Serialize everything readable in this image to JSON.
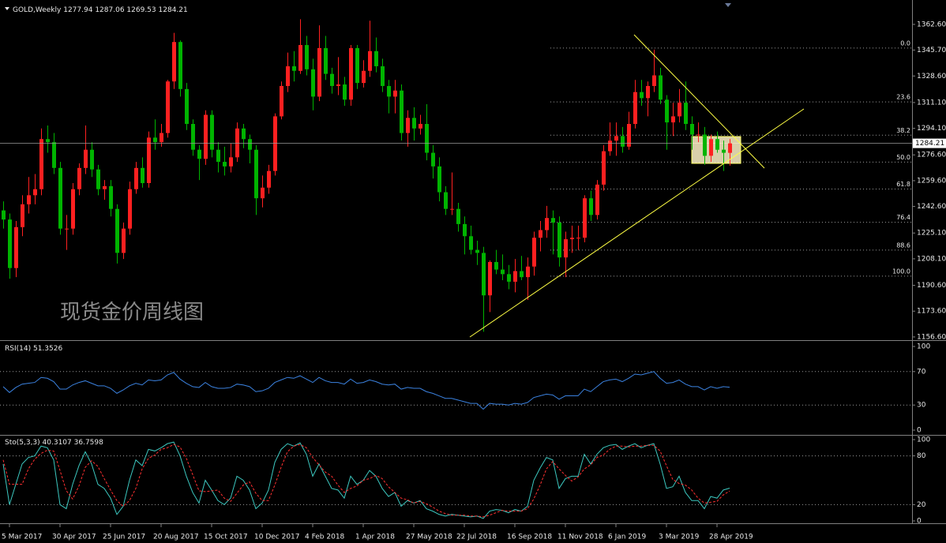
{
  "chart_data": {
    "type": "candlestick",
    "symbol": "GOLD,Weekly",
    "header_ohlc": [
      1277.94,
      1287.06,
      1269.53,
      1284.21
    ],
    "watermark": "现货金价周线图",
    "bull_color": "#ff2020",
    "bear_color": "#00b400",
    "ylim": [
      1155,
      1376.6
    ],
    "yticks": [
      {
        "value": 1362.6,
        "label": "1362.60"
      },
      {
        "value": 1345.7,
        "label": "1345.70"
      },
      {
        "value": 1328.6,
        "label": "1328.60"
      },
      {
        "value": 1311.1,
        "label": "1311.10"
      },
      {
        "value": 1294.1,
        "label": "1294.10"
      },
      {
        "value": 1276.6,
        "label": "1276.60"
      },
      {
        "value": 1259.6,
        "label": "1259.60"
      },
      {
        "value": 1242.6,
        "label": "1242.60"
      },
      {
        "value": 1225.1,
        "label": "1225.10"
      },
      {
        "value": 1208.1,
        "label": "1208.10"
      },
      {
        "value": 1190.6,
        "label": "1190.60"
      },
      {
        "value": 1173.6,
        "label": "1173.60"
      },
      {
        "value": 1156.6,
        "label": "1156.60"
      }
    ],
    "categories": [
      null,
      "5 Mar 2017",
      null,
      null,
      null,
      null,
      null,
      null,
      null,
      "30 Apr 2017",
      null,
      null,
      null,
      null,
      null,
      null,
      null,
      "25 Jun 2017",
      null,
      null,
      null,
      null,
      null,
      null,
      null,
      "20 Aug 2017",
      null,
      null,
      null,
      null,
      null,
      null,
      null,
      "15 Oct 2017",
      null,
      null,
      null,
      null,
      null,
      null,
      null,
      "10 Dec 2017",
      null,
      null,
      null,
      null,
      null,
      null,
      null,
      "4 Feb 2018",
      null,
      null,
      null,
      null,
      null,
      null,
      null,
      "1 Apr 2018",
      null,
      null,
      null,
      null,
      null,
      null,
      null,
      "27 May 2018",
      null,
      null,
      null,
      null,
      null,
      null,
      null,
      "22 Jul 2018",
      null,
      null,
      null,
      null,
      null,
      null,
      null,
      "16 Sep 2018",
      null,
      null,
      null,
      null,
      null,
      null,
      null,
      "11 Nov 2018",
      null,
      null,
      null,
      null,
      null,
      null,
      null,
      "6 Jan 2019",
      null,
      null,
      null,
      null,
      null,
      null,
      null,
      "3 Mar 2019",
      null,
      null,
      null,
      null,
      null,
      null,
      null,
      "28 Apr 2019",
      null,
      null
    ],
    "open": [
      1240,
      1234,
      1202,
      1229,
      1244,
      1250,
      1254,
      1287,
      1285,
      1268,
      1228,
      1228,
      1254,
      1268,
      1280,
      1267,
      1254,
      1256,
      1241,
      1212,
      1228,
      1254,
      1268,
      1258,
      1288,
      1285,
      1291,
      1325,
      1351,
      1320,
      1297,
      1280,
      1274,
      1303,
      1280,
      1272,
      1269,
      1275,
      1294,
      1287,
      1280,
      1248,
      1255,
      1266,
      1302,
      1322,
      1335,
      1332,
      1349,
      1333,
      1315,
      1347,
      1330,
      1322,
      1323,
      1313,
      1347,
      1324,
      1332,
      1345,
      1335,
      1322,
      1315,
      1319,
      1291,
      1301,
      1294,
      1297,
      1278,
      1269,
      1252,
      1241,
      1241,
      1231,
      1223,
      1214,
      1212,
      1184,
      1206,
      1201,
      1198,
      1193,
      1200,
      1196,
      1203,
      1222,
      1227,
      1235,
      1232,
      1209,
      1221,
      1222,
      1222,
      1248,
      1237,
      1257,
      1279,
      1286,
      1289,
      1282,
      1297,
      1318,
      1314,
      1322,
      1329,
      1313,
      1298,
      1302,
      1311,
      1297,
      1290,
      1290,
      1276,
      1287,
      1280,
      1277.94
    ],
    "high": [
      1246,
      1238,
      1233,
      1250,
      1262,
      1264,
      1294,
      1296,
      1291,
      1272,
      1237,
      1258,
      1271,
      1296,
      1285,
      1270,
      1260,
      1260,
      1244,
      1232,
      1259,
      1272,
      1275,
      1292,
      1300,
      1297,
      1326,
      1357,
      1352,
      1324,
      1300,
      1283,
      1306,
      1306,
      1285,
      1282,
      1284,
      1298,
      1297,
      1290,
      1283,
      1263,
      1270,
      1304,
      1325,
      1344,
      1345,
      1366,
      1355,
      1340,
      1362,
      1355,
      1334,
      1341,
      1328,
      1349,
      1349,
      1339,
      1365,
      1354,
      1340,
      1326,
      1326,
      1323,
      1306,
      1308,
      1303,
      1310,
      1283,
      1275,
      1256,
      1265,
      1245,
      1236,
      1230,
      1220,
      1216,
      1207,
      1214,
      1211,
      1204,
      1208,
      1210,
      1209,
      1226,
      1233,
      1243,
      1240,
      1236,
      1226,
      1230,
      1230,
      1250,
      1253,
      1260,
      1283,
      1298,
      1298,
      1295,
      1305,
      1326,
      1326,
      1325,
      1346,
      1334,
      1316,
      1311,
      1320,
      1325,
      1302,
      1298,
      1295,
      1290,
      1292,
      1286,
      1287.06
    ],
    "low": [
      1228,
      1195,
      1196,
      1223,
      1238,
      1244,
      1250,
      1278,
      1264,
      1224,
      1214,
      1224,
      1250,
      1264,
      1262,
      1250,
      1247,
      1236,
      1205,
      1208,
      1224,
      1251,
      1255,
      1255,
      1280,
      1282,
      1288,
      1320,
      1315,
      1293,
      1276,
      1260,
      1270,
      1275,
      1265,
      1263,
      1265,
      1272,
      1281,
      1271,
      1237,
      1242,
      1251,
      1263,
      1300,
      1318,
      1325,
      1330,
      1329,
      1306,
      1312,
      1326,
      1317,
      1316,
      1309,
      1309,
      1320,
      1321,
      1328,
      1331,
      1318,
      1304,
      1304,
      1286,
      1282,
      1286,
      1290,
      1273,
      1261,
      1246,
      1237,
      1237,
      1226,
      1211,
      1211,
      1204,
      1160,
      1173,
      1198,
      1194,
      1188,
      1186,
      1194,
      1181,
      1197,
      1213,
      1222,
      1211,
      1203,
      1196,
      1212,
      1214,
      1219,
      1233,
      1234,
      1253,
      1276,
      1276,
      1278,
      1280,
      1294,
      1309,
      1302,
      1318,
      1310,
      1280,
      1289,
      1298,
      1293,
      1280,
      1285,
      1270,
      1272,
      1278,
      1266,
      1269.53
    ],
    "close": [
      1234,
      1202,
      1229,
      1244,
      1250,
      1254,
      1287,
      1285,
      1268,
      1228,
      1228,
      1254,
      1268,
      1280,
      1267,
      1254,
      1256,
      1241,
      1212,
      1228,
      1254,
      1268,
      1258,
      1288,
      1285,
      1291,
      1325,
      1351,
      1320,
      1297,
      1280,
      1274,
      1303,
      1280,
      1272,
      1269,
      1275,
      1294,
      1287,
      1280,
      1248,
      1255,
      1266,
      1302,
      1322,
      1335,
      1332,
      1349,
      1333,
      1315,
      1347,
      1330,
      1322,
      1323,
      1313,
      1347,
      1324,
      1332,
      1345,
      1335,
      1322,
      1315,
      1319,
      1291,
      1301,
      1294,
      1297,
      1278,
      1269,
      1252,
      1241,
      1241,
      1231,
      1223,
      1214,
      1212,
      1184,
      1206,
      1201,
      1198,
      1193,
      1200,
      1196,
      1203,
      1222,
      1227,
      1235,
      1232,
      1209,
      1221,
      1222,
      1222,
      1248,
      1237,
      1257,
      1279,
      1286,
      1289,
      1282,
      1297,
      1318,
      1314,
      1322,
      1329,
      1313,
      1298,
      1302,
      1311,
      1297,
      1290,
      1290,
      1276,
      1287,
      1280,
      1278,
      1284.21
    ],
    "fibonacci": {
      "high": 1347,
      "low": 1196.7,
      "levels": [
        {
          "value": 0,
          "label": "0.0"
        },
        23.6,
        38.2,
        {
          "value": 50,
          "label": "50.0"
        },
        61.8,
        76.4,
        88.6,
        {
          "value": 100,
          "label": "100.0"
        }
      ]
    },
    "indicators": [
      {
        "name": "RSI(14)",
        "last": [
          51.3526
        ],
        "ylim": [
          0,
          100
        ],
        "yticks": [
          100,
          70,
          30,
          0
        ],
        "levels": [
          70,
          30
        ],
        "series": [
          {
            "color": "#3b82e0",
            "values": [
              52,
              45,
              51,
              55,
              56,
              57,
              63,
              62,
              58,
              49,
              49,
              54,
              57,
              59,
              56,
              53,
              53,
              50,
              44,
              48,
              53,
              56,
              54,
              60,
              59,
              60,
              66,
              69,
              61,
              56,
              52,
              51,
              57,
              52,
              50,
              50,
              51,
              55,
              54,
              52,
              46,
              47,
              50,
              57,
              60,
              63,
              62,
              65,
              61,
              57,
              63,
              59,
              57,
              57,
              55,
              61,
              56,
              57,
              60,
              58,
              55,
              54,
              55,
              49,
              51,
              50,
              50,
              46,
              44,
              41,
              38,
              38,
              36,
              34,
              32,
              32,
              25,
              32,
              31,
              31,
              30,
              32,
              31,
              33,
              39,
              41,
              43,
              42,
              37,
              41,
              41,
              41,
              49,
              46,
              52,
              58,
              60,
              61,
              58,
              62,
              67,
              66,
              68,
              70,
              62,
              56,
              57,
              60,
              55,
              52,
              52,
              48,
              52,
              50,
              52,
              51.3526
            ]
          }
        ]
      },
      {
        "name": "Sto(5,3,3)",
        "last": [
          40.3107,
          36.7598
        ],
        "ylim": [
          0,
          100
        ],
        "yticks": [
          100,
          80,
          20,
          0
        ],
        "levels": [
          80,
          20
        ],
        "series": [
          {
            "color": "#3cc8c0",
            "values": [
              70,
              20,
              45,
              70,
              78,
              80,
              92,
              90,
              75,
              20,
              15,
              45,
              68,
              85,
              70,
              45,
              40,
              28,
              8,
              18,
              50,
              75,
              68,
              88,
              86,
              90,
              95,
              97,
              80,
              55,
              35,
              22,
              50,
              38,
              25,
              20,
              28,
              55,
              50,
              38,
              15,
              22,
              38,
              72,
              88,
              95,
              92,
              96,
              82,
              55,
              70,
              55,
              40,
              38,
              28,
              55,
              45,
              50,
              62,
              55,
              40,
              30,
              35,
              18,
              25,
              22,
              25,
              15,
              12,
              8,
              6,
              8,
              7,
              6,
              5,
              6,
              3,
              12,
              14,
              13,
              10,
              14,
              12,
              18,
              50,
              65,
              78,
              75,
              40,
              52,
              55,
              55,
              82,
              70,
              82,
              90,
              93,
              94,
              88,
              92,
              95,
              90,
              93,
              95,
              70,
              40,
              42,
              55,
              35,
              25,
              25,
              15,
              30,
              28,
              38,
              40.3107
            ]
          },
          {
            "color": "#ff3030",
            "dashed": true,
            "values": [
              75,
              45,
              45,
              45,
              64,
              76,
              83,
              87,
              86,
              62,
              37,
              27,
              43,
              66,
              74,
              67,
              52,
              38,
              25,
              18,
              25,
              40,
              64,
              77,
              81,
              88,
              90,
              94,
              91,
              77,
              57,
              37,
              36,
              37,
              38,
              28,
              24,
              34,
              44,
              48,
              34,
              25,
              25,
              44,
              66,
              85,
              92,
              94,
              90,
              78,
              69,
              60,
              55,
              44,
              35,
              40,
              43,
              50,
              52,
              56,
              52,
              42,
              35,
              28,
              26,
              22,
              24,
              21,
              17,
              12,
              9,
              7,
              7,
              7,
              6,
              6,
              5,
              7,
              10,
              13,
              12,
              12,
              12,
              15,
              27,
              44,
              64,
              73,
              64,
              56,
              49,
              54,
              64,
              69,
              78,
              81,
              88,
              92,
              92,
              91,
              92,
              92,
              93,
              93,
              86,
              68,
              51,
              46,
              44,
              38,
              28,
              22,
              23,
              24,
              32,
              36.7598
            ]
          }
        ]
      }
    ]
  }
}
